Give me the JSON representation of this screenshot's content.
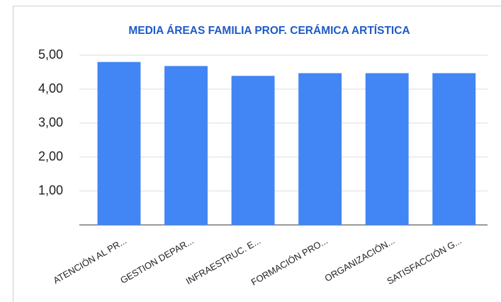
{
  "chart_data": {
    "type": "bar",
    "title": "MEDIA ÁREAS FAMILIA PROF. CERÁMICA ARTÍSTICA",
    "categories": [
      "ATENCIÓN AL PR...",
      "GESTION DEPAR...",
      "INFRAESTRUC. E...",
      "FORMACIÓN PRO...",
      "ORGANIZACIÓN...",
      "SATISFACCIÓN G..."
    ],
    "values": [
      4.8,
      4.68,
      4.39,
      4.47,
      4.47,
      4.47
    ],
    "color": "#4285f4",
    "ylim": [
      0,
      5
    ],
    "yticks": [
      {
        "value": 1,
        "label": "1,00"
      },
      {
        "value": 2,
        "label": "2,00"
      },
      {
        "value": 3,
        "label": "3,00"
      },
      {
        "value": 4,
        "label": "4,00"
      },
      {
        "value": 5,
        "label": "5,00"
      }
    ],
    "grid": true
  }
}
